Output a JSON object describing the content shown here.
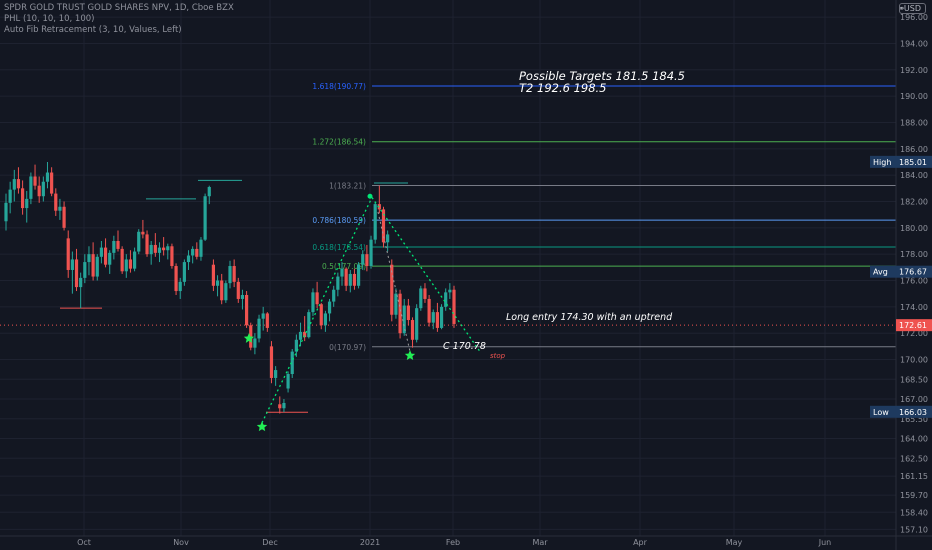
{
  "legend": {
    "title": "SPDR GOLD TRUST GOLD SHARES NPV, 1D, Cboe BZX",
    "line2": "PHL (10, 10, 10, 100)",
    "line3": "Auto Fib Retracement (3, 10, Values, Left)"
  },
  "currency": "USD",
  "colors": {
    "background": "#131722",
    "grid": "#1e2230",
    "up": "#26a69a",
    "down": "#ef5350",
    "fib_1618": "#2962ff",
    "fib_1272": "#4caf50",
    "fib_1": "#787b86",
    "fib_0786": "#5b9cf6",
    "fib_0618": "#089981",
    "fib_05": "#4caf50",
    "fib_0": "#787b86",
    "trend": "#00e676",
    "star": "#22ee55",
    "label_bg": "#1e3a5f"
  },
  "chart_data": {
    "type": "candlestick",
    "y_axis": {
      "ticks": [
        "196.00",
        "194.00",
        "192.00",
        "190.00",
        "188.00",
        "186.00",
        "184.00",
        "182.00",
        "180.00",
        "178.00",
        "176.00",
        "174.00",
        "172.00",
        "170.00",
        "168.50",
        "167.00",
        "165.50",
        "164.00",
        "162.50",
        "161.15",
        "159.70",
        "158.40",
        "157.10"
      ],
      "ylim": [
        156.6,
        197.3
      ]
    },
    "x_axis": {
      "ticks": [
        "Oct",
        "Nov",
        "Dec",
        "2021",
        "Feb",
        "Mar",
        "Apr",
        "May",
        "Jun"
      ]
    },
    "price_labels": [
      {
        "label": "High",
        "value": "185.01"
      },
      {
        "label": "Avg",
        "value": "176.67"
      },
      {
        "label": "",
        "value": "172.61"
      },
      {
        "label": "Low",
        "value": "166.03"
      }
    ],
    "fib_levels": [
      {
        "label": "1.618(190.77)",
        "value": 190.77
      },
      {
        "label": "1.272(186.54)",
        "value": 186.54
      },
      {
        "label": "1(183.21)",
        "value": 183.21
      },
      {
        "label": "0.786(180.59)",
        "value": 180.59
      },
      {
        "label": "0.618(178.54)",
        "value": 178.54
      },
      {
        "label": "0.5(177.09)",
        "value": 177.09
      },
      {
        "label": "0(170.97)",
        "value": 170.97
      }
    ],
    "annotations": {
      "targets_line1": "Possible Targets  181.5    184.5",
      "targets_line2": "T2  192.6   198.5",
      "entry": "Long entry 174.30 with an uptrend",
      "stop_level": "C 170.78",
      "stop": "stop"
    },
    "candles": [
      [
        180.5,
        182.6,
        179.8,
        181.9
      ],
      [
        181.9,
        183.5,
        181.1,
        182.9
      ],
      [
        182.9,
        184.4,
        182.0,
        183.7
      ],
      [
        183.7,
        184.6,
        182.6,
        183.0
      ],
      [
        183.0,
        183.6,
        181.0,
        181.5
      ],
      [
        181.5,
        182.8,
        180.4,
        182.2
      ],
      [
        182.2,
        184.2,
        181.8,
        183.9
      ],
      [
        183.9,
        184.8,
        182.9,
        183.2
      ],
      [
        183.2,
        183.9,
        181.9,
        182.4
      ],
      [
        182.4,
        183.9,
        182.0,
        183.5
      ],
      [
        183.5,
        185.0,
        183.0,
        184.2
      ],
      [
        184.2,
        184.6,
        182.4,
        182.6
      ],
      [
        182.6,
        183.0,
        180.9,
        181.3
      ],
      [
        181.3,
        182.2,
        180.6,
        181.6
      ],
      [
        181.6,
        182.0,
        179.8,
        180.0
      ],
      [
        179.2,
        179.8,
        176.2,
        176.8
      ],
      [
        176.8,
        178.2,
        175.0,
        177.6
      ],
      [
        177.6,
        178.4,
        175.2,
        175.5
      ],
      [
        175.5,
        176.6,
        173.9,
        176.2
      ],
      [
        176.2,
        178.0,
        175.8,
        177.4
      ],
      [
        177.4,
        178.6,
        176.4,
        178.0
      ],
      [
        178.0,
        178.9,
        176.0,
        176.3
      ],
      [
        176.3,
        178.0,
        176.0,
        177.8
      ],
      [
        177.8,
        179.0,
        177.3,
        178.5
      ],
      [
        178.5,
        179.2,
        177.0,
        177.2
      ],
      [
        177.2,
        178.3,
        176.5,
        178.1
      ],
      [
        178.1,
        179.4,
        177.6,
        179.0
      ],
      [
        179.0,
        179.8,
        178.2,
        178.4
      ],
      [
        178.4,
        178.6,
        176.5,
        176.7
      ],
      [
        176.7,
        178.0,
        176.2,
        177.6
      ],
      [
        177.6,
        178.3,
        176.6,
        176.9
      ],
      [
        176.9,
        178.5,
        176.7,
        178.2
      ],
      [
        178.2,
        179.9,
        178.0,
        179.7
      ],
      [
        179.7,
        180.6,
        179.2,
        179.5
      ],
      [
        179.5,
        179.8,
        177.8,
        178.0
      ],
      [
        178.0,
        179.0,
        177.2,
        178.7
      ],
      [
        178.7,
        179.6,
        177.8,
        178.1
      ],
      [
        178.1,
        178.9,
        177.4,
        178.5
      ],
      [
        178.5,
        179.3,
        177.9,
        178.3
      ],
      [
        178.3,
        178.8,
        177.6,
        178.6
      ],
      [
        178.6,
        178.8,
        176.9,
        177.1
      ],
      [
        177.1,
        177.3,
        174.9,
        175.2
      ],
      [
        175.2,
        176.2,
        174.6,
        175.9
      ],
      [
        175.9,
        177.6,
        175.6,
        177.4
      ],
      [
        177.4,
        178.3,
        176.8,
        177.9
      ],
      [
        177.9,
        178.6,
        177.3,
        178.4
      ],
      [
        178.4,
        178.9,
        177.6,
        177.8
      ],
      [
        177.8,
        179.3,
        177.5,
        179.1
      ],
      [
        179.1,
        182.6,
        179.0,
        182.4
      ],
      [
        182.4,
        183.2,
        181.8,
        183.1
      ],
      [
        177.2,
        177.6,
        175.2,
        175.6
      ],
      [
        175.6,
        176.4,
        174.8,
        176.0
      ],
      [
        176.0,
        176.5,
        174.2,
        174.5
      ],
      [
        174.5,
        176.0,
        174.3,
        175.8
      ],
      [
        175.8,
        177.5,
        175.4,
        177.1
      ],
      [
        177.1,
        177.6,
        175.5,
        175.9
      ],
      [
        175.9,
        176.2,
        174.3,
        174.6
      ],
      [
        174.6,
        175.3,
        173.8,
        174.9
      ],
      [
        174.9,
        175.2,
        172.4,
        172.6
      ],
      [
        172.6,
        172.8,
        170.7,
        170.9
      ],
      [
        170.9,
        172.0,
        170.4,
        171.6
      ],
      [
        171.6,
        173.4,
        171.3,
        173.1
      ],
      [
        173.1,
        174.0,
        172.2,
        173.5
      ],
      [
        173.5,
        173.6,
        172.1,
        172.4
      ],
      [
        171.0,
        171.4,
        168.2,
        168.6
      ],
      [
        168.6,
        169.5,
        168.0,
        169.2
      ],
      [
        166.6,
        167.2,
        165.9,
        166.3
      ],
      [
        166.3,
        167.0,
        166.0,
        166.7
      ],
      [
        167.8,
        169.1,
        167.5,
        168.9
      ],
      [
        168.9,
        170.8,
        168.6,
        170.6
      ],
      [
        170.6,
        171.9,
        170.2,
        171.5
      ],
      [
        171.5,
        172.8,
        171.0,
        172.1
      ],
      [
        172.1,
        173.3,
        171.4,
        171.7
      ],
      [
        171.7,
        173.8,
        171.6,
        173.6
      ],
      [
        173.6,
        175.4,
        173.3,
        175.1
      ],
      [
        175.1,
        175.9,
        173.9,
        174.2
      ],
      [
        174.2,
        174.3,
        172.3,
        172.6
      ],
      [
        172.6,
        173.7,
        172.1,
        173.5
      ],
      [
        173.5,
        174.6,
        172.9,
        174.4
      ],
      [
        174.4,
        175.6,
        174.0,
        175.3
      ],
      [
        175.3,
        176.6,
        174.8,
        176.3
      ],
      [
        176.3,
        177.4,
        175.6,
        176.9
      ],
      [
        176.9,
        177.0,
        175.2,
        175.6
      ],
      [
        175.6,
        176.8,
        175.1,
        176.5
      ],
      [
        176.5,
        176.9,
        175.3,
        175.6
      ],
      [
        175.6,
        177.4,
        175.4,
        177.2
      ],
      [
        177.2,
        178.3,
        176.8,
        178.0
      ],
      [
        178.0,
        178.7,
        176.7,
        177.1
      ],
      [
        177.1,
        179.4,
        176.9,
        179.1
      ],
      [
        179.1,
        182.0,
        178.8,
        181.8
      ],
      [
        181.8,
        183.2,
        181.1,
        181.4
      ],
      [
        181.4,
        181.6,
        178.5,
        178.9
      ],
      [
        178.9,
        179.8,
        178.2,
        179.5
      ],
      [
        177.2,
        177.6,
        172.9,
        173.4
      ],
      [
        173.4,
        175.4,
        173.1,
        175.0
      ],
      [
        175.0,
        175.3,
        171.6,
        172.0
      ],
      [
        172.0,
        174.6,
        171.8,
        174.1
      ],
      [
        174.1,
        174.6,
        172.6,
        173.0
      ],
      [
        173.0,
        173.2,
        170.9,
        171.5
      ],
      [
        171.5,
        174.2,
        171.3,
        173.9
      ],
      [
        173.9,
        175.6,
        173.7,
        175.4
      ],
      [
        175.4,
        175.8,
        174.3,
        174.6
      ],
      [
        174.6,
        174.9,
        172.5,
        172.8
      ],
      [
        172.8,
        173.8,
        172.3,
        173.6
      ],
      [
        173.6,
        174.3,
        172.1,
        172.4
      ],
      [
        172.4,
        174.2,
        172.3,
        174.0
      ],
      [
        174.0,
        175.4,
        173.7,
        175.1
      ],
      [
        175.1,
        175.8,
        174.6,
        175.3
      ],
      [
        175.3,
        175.6,
        172.4,
        172.7
      ]
    ]
  }
}
